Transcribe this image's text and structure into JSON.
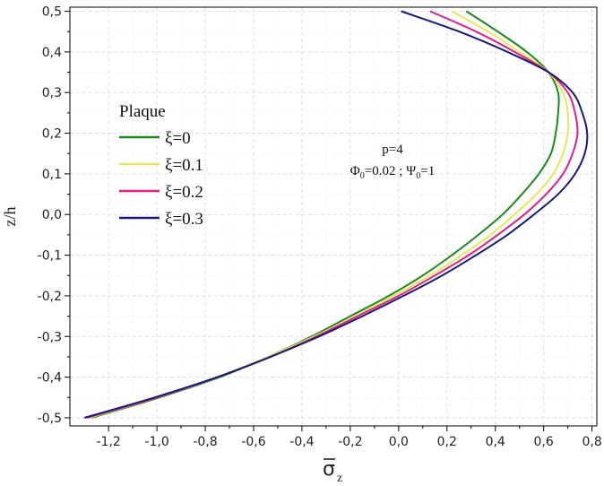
{
  "chart_data": {
    "type": "line",
    "xlabel": "σ",
    "xlabel_subscript": "z",
    "ylabel": "z/h",
    "xlim": [
      -1.36,
      0.82
    ],
    "ylim": [
      -0.52,
      0.51
    ],
    "xticks": [
      -1.2,
      -1.0,
      -0.8,
      -0.6,
      -0.4,
      -0.2,
      0.0,
      0.2,
      0.4,
      0.6,
      0.8
    ],
    "xtick_labels": [
      "-1,2",
      "-1,0",
      "-0,8",
      "-0,6",
      "-0,4",
      "-0,2",
      "0,0",
      "0,2",
      "0,4",
      "0,6",
      "0,8"
    ],
    "yticks": [
      -0.5,
      -0.4,
      -0.3,
      -0.2,
      -0.1,
      0.0,
      0.1,
      0.2,
      0.3,
      0.4,
      0.5
    ],
    "ytick_labels": [
      "-0,5",
      "-0,4",
      "-0,3",
      "-0,2",
      "-0,1",
      "0,0",
      "0,1",
      "0,2",
      "0,3",
      "0,4",
      "0,5"
    ],
    "grid": true,
    "legend": {
      "title": "Plaque",
      "placement": "left-center"
    },
    "annotation": {
      "line1": "p=4",
      "phi": "Φ",
      "phi_sub": "0",
      "phi_val": "=0.02 ; ",
      "psi": "Ψ",
      "psi_sub": "0",
      "psi_val": "=1"
    },
    "series": [
      {
        "name": "ξ=0",
        "color": "#1a8a1a",
        "points": [
          [
            -1.27,
            -0.5
          ],
          [
            -0.99,
            -0.45
          ],
          [
            -0.74,
            -0.4
          ],
          [
            -0.54,
            -0.35
          ],
          [
            -0.36,
            -0.3
          ],
          [
            -0.2,
            -0.25
          ],
          [
            -0.04,
            -0.2
          ],
          [
            0.1,
            -0.15
          ],
          [
            0.22,
            -0.1
          ],
          [
            0.33,
            -0.05
          ],
          [
            0.43,
            0.0
          ],
          [
            0.51,
            0.05
          ],
          [
            0.58,
            0.1
          ],
          [
            0.63,
            0.15
          ],
          [
            0.65,
            0.2
          ],
          [
            0.66,
            0.25
          ],
          [
            0.66,
            0.3
          ],
          [
            0.62,
            0.35
          ],
          [
            0.53,
            0.4
          ],
          [
            0.41,
            0.45
          ],
          [
            0.28,
            0.5
          ]
        ]
      },
      {
        "name": "ξ=0.1",
        "color": "#e8e85a",
        "points": [
          [
            -1.28,
            -0.5
          ],
          [
            -1.0,
            -0.45
          ],
          [
            -0.75,
            -0.4
          ],
          [
            -0.54,
            -0.35
          ],
          [
            -0.35,
            -0.3
          ],
          [
            -0.18,
            -0.25
          ],
          [
            -0.02,
            -0.2
          ],
          [
            0.13,
            -0.15
          ],
          [
            0.26,
            -0.1
          ],
          [
            0.38,
            -0.05
          ],
          [
            0.48,
            0.0
          ],
          [
            0.57,
            0.05
          ],
          [
            0.64,
            0.1
          ],
          [
            0.68,
            0.15
          ],
          [
            0.7,
            0.2
          ],
          [
            0.7,
            0.25
          ],
          [
            0.68,
            0.3
          ],
          [
            0.62,
            0.35
          ],
          [
            0.5,
            0.4
          ],
          [
            0.37,
            0.45
          ],
          [
            0.22,
            0.5
          ]
        ]
      },
      {
        "name": "ξ=0.2",
        "color": "#e0208a",
        "points": [
          [
            -1.29,
            -0.5
          ],
          [
            -1.0,
            -0.45
          ],
          [
            -0.75,
            -0.4
          ],
          [
            -0.53,
            -0.35
          ],
          [
            -0.34,
            -0.3
          ],
          [
            -0.17,
            -0.25
          ],
          [
            0.0,
            -0.2
          ],
          [
            0.15,
            -0.15
          ],
          [
            0.29,
            -0.1
          ],
          [
            0.41,
            -0.05
          ],
          [
            0.52,
            0.0
          ],
          [
            0.61,
            0.05
          ],
          [
            0.68,
            0.1
          ],
          [
            0.72,
            0.15
          ],
          [
            0.74,
            0.2
          ],
          [
            0.73,
            0.25
          ],
          [
            0.7,
            0.3
          ],
          [
            0.62,
            0.35
          ],
          [
            0.48,
            0.4
          ],
          [
            0.32,
            0.45
          ],
          [
            0.13,
            0.5
          ]
        ]
      },
      {
        "name": "ξ=0.3",
        "color": "#1a1a7a",
        "points": [
          [
            -1.3,
            -0.5
          ],
          [
            -1.01,
            -0.45
          ],
          [
            -0.75,
            -0.4
          ],
          [
            -0.53,
            -0.35
          ],
          [
            -0.33,
            -0.3
          ],
          [
            -0.15,
            -0.25
          ],
          [
            0.02,
            -0.2
          ],
          [
            0.18,
            -0.15
          ],
          [
            0.32,
            -0.1
          ],
          [
            0.45,
            -0.05
          ],
          [
            0.56,
            0.0
          ],
          [
            0.66,
            0.05
          ],
          [
            0.73,
            0.1
          ],
          [
            0.77,
            0.15
          ],
          [
            0.78,
            0.2
          ],
          [
            0.76,
            0.25
          ],
          [
            0.72,
            0.3
          ],
          [
            0.62,
            0.35
          ],
          [
            0.45,
            0.4
          ],
          [
            0.25,
            0.45
          ],
          [
            0.01,
            0.5
          ]
        ]
      }
    ]
  }
}
